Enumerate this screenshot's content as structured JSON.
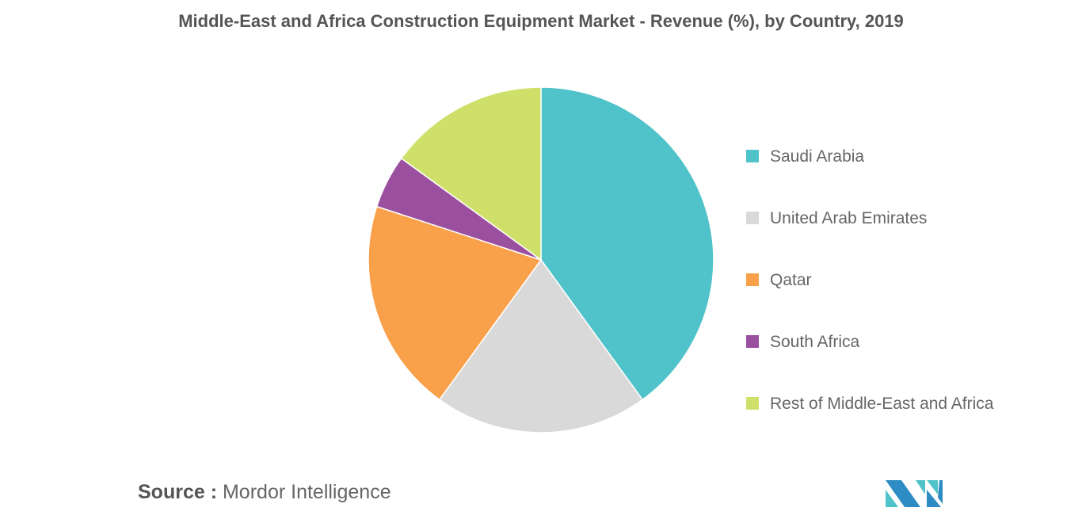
{
  "chart_data": {
    "type": "pie",
    "title": "Middle-East and Africa Construction Equipment Market - Revenue (%), by Country, 2019",
    "categories": [
      "Saudi Arabia",
      "United Arab Emirates",
      "Qatar",
      "South Africa",
      "Rest of Middle-East and Africa"
    ],
    "values": [
      40,
      20,
      20,
      5,
      15
    ],
    "colors": [
      "#4fc3c9",
      "#d9d9d9",
      "#f9a04a",
      "#9b4f9f",
      "#cfe06a"
    ],
    "start_angle": "12 o'clock, clockwise",
    "legend_placement": "right"
  },
  "source": {
    "label": "Source :",
    "text": "Mordor Intelligence"
  },
  "logo": {
    "alt": "MI"
  }
}
